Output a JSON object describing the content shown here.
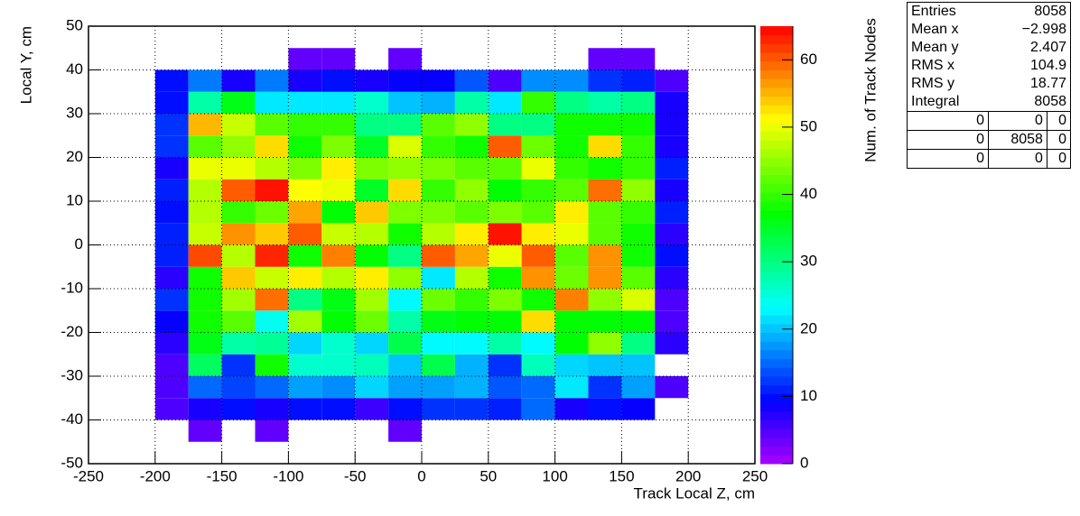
{
  "chart_data": {
    "type": "heatmap",
    "xlabel": "Track Local Z, cm",
    "ylabel": "Local Y, cm",
    "zlabel": "Num. of Track Nodes",
    "x_edges": [
      -200,
      -175,
      -150,
      -125,
      -100,
      -75,
      -50,
      -25,
      0,
      25,
      50,
      75,
      100,
      125,
      150,
      175,
      200
    ],
    "y_edges": [
      -45,
      -40,
      -35,
      -30,
      -25,
      -20,
      -15,
      -10,
      -5,
      0,
      5,
      10,
      15,
      20,
      25,
      30,
      35,
      40,
      45
    ],
    "values": [
      [
        null,
        4,
        null,
        4,
        null,
        null,
        null,
        4,
        null,
        null,
        null,
        null,
        null,
        null,
        null,
        null
      ],
      [
        5,
        8,
        10,
        8,
        10,
        10,
        6,
        10,
        12,
        12,
        11,
        15,
        8,
        10,
        9,
        null
      ],
      [
        5,
        15,
        13,
        15,
        18,
        17,
        21,
        18,
        18,
        19,
        14,
        15,
        22,
        12,
        18,
        5
      ],
      [
        5,
        32,
        12,
        38,
        26,
        26,
        27,
        20,
        33,
        19,
        12,
        27,
        21,
        20,
        20,
        null
      ],
      [
        7,
        36,
        28,
        29,
        21,
        26,
        21,
        33,
        23,
        23,
        28,
        23,
        37,
        45,
        30,
        7
      ],
      [
        9,
        38,
        42,
        24,
        46,
        37,
        43,
        28,
        36,
        37,
        37,
        53,
        37,
        37,
        37,
        5
      ],
      [
        12,
        38,
        46,
        59,
        30,
        36,
        46,
        23,
        43,
        40,
        44,
        38,
        58,
        45,
        49,
        5
      ],
      [
        7,
        38,
        54,
        48,
        52,
        47,
        52,
        45,
        22,
        47,
        38,
        57,
        43,
        57,
        42,
        7
      ],
      [
        11,
        61,
        47,
        63,
        38,
        58,
        37,
        30,
        60,
        56,
        50,
        60,
        42,
        57,
        38,
        10
      ],
      [
        11,
        48,
        57,
        54,
        60,
        48,
        47,
        38,
        47,
        52,
        64,
        52,
        50,
        42,
        38,
        7
      ],
      [
        10,
        47,
        40,
        43,
        56,
        37,
        54,
        44,
        44,
        42,
        44,
        42,
        52,
        42,
        40,
        11
      ],
      [
        11,
        47,
        60,
        64,
        51,
        50,
        35,
        53,
        40,
        45,
        37,
        40,
        42,
        59,
        45,
        8
      ],
      [
        8,
        50,
        50,
        47,
        44,
        52,
        44,
        45,
        44,
        42,
        42,
        50,
        40,
        38,
        40,
        11
      ],
      [
        12,
        42,
        45,
        53,
        38,
        44,
        35,
        49,
        40,
        38,
        60,
        43,
        38,
        53,
        40,
        8
      ],
      [
        12,
        55,
        48,
        42,
        40,
        40,
        30,
        30,
        42,
        45,
        30,
        30,
        38,
        38,
        38,
        8
      ],
      [
        10,
        28,
        36,
        22,
        22,
        22,
        26,
        20,
        19,
        28,
        22,
        40,
        30,
        28,
        30,
        8
      ],
      [
        10,
        16,
        8,
        16,
        8,
        10,
        8,
        9,
        9,
        14,
        5,
        17,
        17,
        12,
        11,
        5
      ],
      [
        null,
        null,
        null,
        null,
        4,
        4,
        null,
        4,
        null,
        null,
        null,
        null,
        null,
        4,
        4,
        null
      ]
    ],
    "xlim": [
      -250,
      250
    ],
    "xticks": [
      -250,
      -200,
      -150,
      -100,
      -50,
      0,
      50,
      100,
      150,
      200,
      250
    ],
    "ylim": [
      -50,
      50
    ],
    "yticks": [
      -50,
      -40,
      -30,
      -20,
      -10,
      0,
      10,
      20,
      30,
      40,
      50
    ],
    "zlim": [
      0,
      65
    ],
    "zticks": [
      0,
      10,
      20,
      30,
      40,
      50,
      60
    ],
    "grid": true,
    "stats": {
      "rows": [
        [
          "Entries",
          "8058"
        ],
        [
          "Mean x",
          "−2.998"
        ],
        [
          "Mean y",
          "2.407"
        ],
        [
          "RMS x",
          "104.9"
        ],
        [
          "RMS y",
          "18.77"
        ],
        [
          "Integral",
          "8058"
        ]
      ],
      "grid": [
        [
          "0",
          "0",
          "0"
        ],
        [
          "0",
          "8058",
          "0"
        ],
        [
          "0",
          "0",
          "0"
        ]
      ]
    }
  }
}
